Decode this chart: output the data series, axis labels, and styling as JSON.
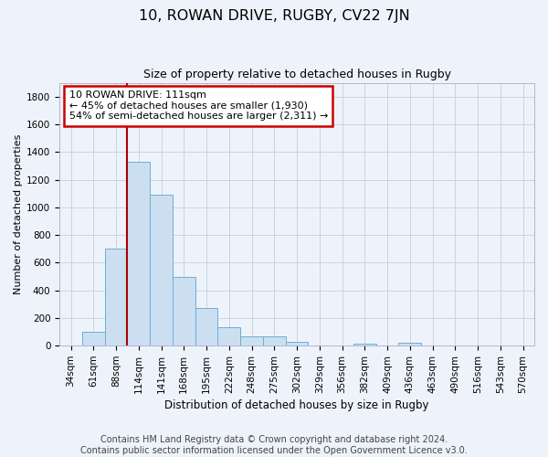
{
  "title": "10, ROWAN DRIVE, RUGBY, CV22 7JN",
  "subtitle": "Size of property relative to detached houses in Rugby",
  "xlabel": "Distribution of detached houses by size in Rugby",
  "ylabel": "Number of detached properties",
  "bin_labels": [
    "34sqm",
    "61sqm",
    "88sqm",
    "114sqm",
    "141sqm",
    "168sqm",
    "195sqm",
    "222sqm",
    "248sqm",
    "275sqm",
    "302sqm",
    "329sqm",
    "356sqm",
    "382sqm",
    "409sqm",
    "436sqm",
    "463sqm",
    "490sqm",
    "516sqm",
    "543sqm",
    "570sqm"
  ],
  "bar_values": [
    0,
    100,
    700,
    1330,
    1090,
    500,
    275,
    135,
    70,
    70,
    30,
    0,
    0,
    15,
    0,
    20,
    0,
    0,
    0,
    0,
    0
  ],
  "bar_color": "#ccdff0",
  "bar_edge_color": "#6aafd6",
  "grid_color": "#c5d5e5",
  "background_color": "#eef3fb",
  "property_line_color": "#aa0000",
  "annotation_text": "10 ROWAN DRIVE: 111sqm\n← 45% of detached houses are smaller (1,930)\n54% of semi-detached houses are larger (2,311) →",
  "annotation_box_color": "#ffffff",
  "annotation_box_edge": "#cc0000",
  "footer_line1": "Contains HM Land Registry data © Crown copyright and database right 2024.",
  "footer_line2": "Contains public sector information licensed under the Open Government Licence v3.0.",
  "ylim": [
    0,
    1900
  ],
  "yticks": [
    0,
    200,
    400,
    600,
    800,
    1000,
    1200,
    1400,
    1600,
    1800
  ],
  "title_fontsize": 11.5,
  "subtitle_fontsize": 9,
  "axis_label_fontsize": 8,
  "tick_fontsize": 7.5,
  "footer_fontsize": 7
}
